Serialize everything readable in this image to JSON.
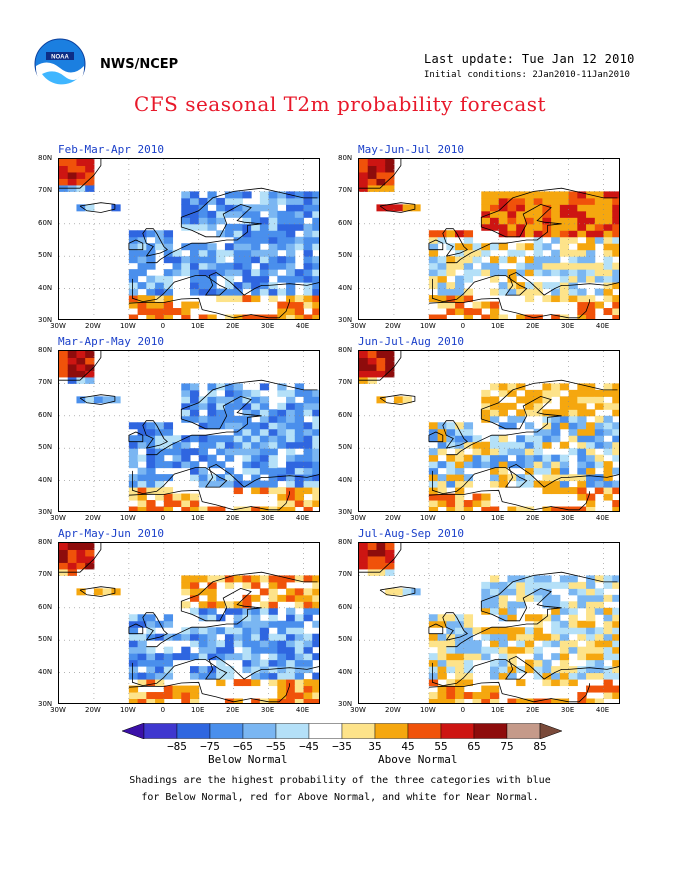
{
  "header": {
    "org": "NWS/NCEP",
    "last_update": "Last update: Tue Jan 12 2010",
    "initial_conditions": "Initial conditions: 2Jan2010-11Jan2010",
    "title": "CFS seasonal T2m probability forecast"
  },
  "panels": [
    {
      "title": "Feb-Mar-Apr 2010",
      "tone": "cold"
    },
    {
      "title": "May-Jun-Jul 2010",
      "tone": "warm"
    },
    {
      "title": "Mar-Apr-May 2010",
      "tone": "cold"
    },
    {
      "title": "Jun-Jul-Aug 2010",
      "tone": "mixed_warm"
    },
    {
      "title": "Apr-May-Jun 2010",
      "tone": "mixed"
    },
    {
      "title": "Jul-Aug-Sep 2010",
      "tone": "mixed_cool"
    }
  ],
  "axes": {
    "lat_labels": [
      "80N",
      "70N",
      "60N",
      "50N",
      "40N",
      "30N"
    ],
    "lon_labels": [
      "30W",
      "20W",
      "10W",
      "0",
      "10E",
      "20E",
      "30E",
      "40E"
    ]
  },
  "colorbar": {
    "labels": [
      "−85",
      "−75",
      "−65",
      "−55",
      "−45",
      "−35",
      "35",
      "45",
      "55",
      "65",
      "75",
      "85"
    ],
    "colors": [
      "#3b10a8",
      "#3f37cf",
      "#2f66e0",
      "#4a8fec",
      "#7ab6f2",
      "#b4e0f8",
      "#ffffff",
      "#fde38a",
      "#f5a70f",
      "#f0520a",
      "#cd1512",
      "#8e0c0c",
      "#c59a8a",
      "#7a4a3a"
    ],
    "below_label": "Below Normal",
    "above_label": "Above Normal"
  },
  "note": {
    "line1": "Shadings are the highest probability of the three categories with blue",
    "line2": "for Below Normal, red for Above Normal, and white for Near Normal."
  }
}
